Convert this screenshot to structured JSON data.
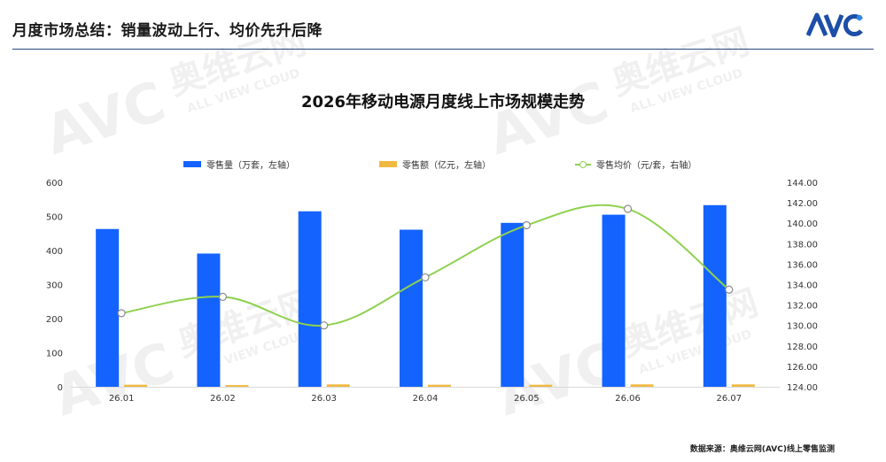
{
  "header": {
    "headline": "月度市场总结：销量波动上行、均价先升后降",
    "logo_text": "AVC"
  },
  "watermark": {
    "brand": "AVC",
    "cn_text": "奥维云网",
    "en_text": "ALL VIEW CLOUD"
  },
  "colors": {
    "volume": "#1463ff",
    "amount": "#f0b940",
    "price": "#8fd14f",
    "accent": "#1d4ea8"
  },
  "source_text": "数据来源：奥维云网(AVC)线上零售监测",
  "chart_data": {
    "type": "bar",
    "title": "2026年移动电源月度线上市场规模走势",
    "categories": [
      "26.01",
      "26.02",
      "26.03",
      "26.04",
      "26.05",
      "26.06",
      "26.07"
    ],
    "series": [
      {
        "name": "零售量（万套，左轴）",
        "type": "bar",
        "axis": "left",
        "values": [
          463,
          391,
          515,
          461,
          481,
          505,
          533
        ]
      },
      {
        "name": "零售额（亿元，左轴）",
        "type": "bar",
        "axis": "left",
        "values": [
          6,
          5,
          7,
          6,
          6,
          7,
          7
        ]
      },
      {
        "name": "零售均价（元/套，右轴）",
        "type": "line",
        "axis": "right",
        "values": [
          131.2,
          132.8,
          130.0,
          134.7,
          139.8,
          141.4,
          133.5
        ]
      }
    ],
    "ylim_left": [
      0,
      600
    ],
    "yticks_left": [
      "0",
      "100",
      "200",
      "300",
      "400",
      "500",
      "600"
    ],
    "ylim_right": [
      124,
      144
    ],
    "yticks_right": [
      "124.00",
      "126.00",
      "128.00",
      "130.00",
      "132.00",
      "134.00",
      "136.00",
      "138.00",
      "140.00",
      "142.00",
      "144.00"
    ],
    "legend_position": "top",
    "grid": false
  }
}
